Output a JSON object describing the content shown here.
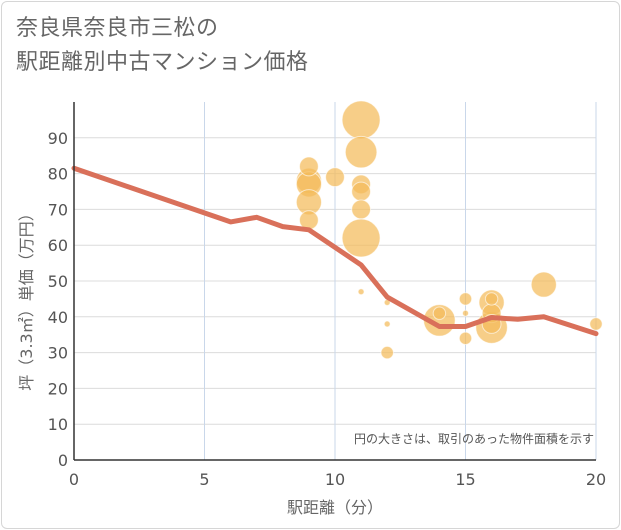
{
  "chart_data": {
    "type": "scatter",
    "title_line1": "奈良県奈良市三松の",
    "title_line2": "駅距離別中古マンション価格",
    "xlabel": "駅距離（分）",
    "ylabel": "坪（3.3㎡）単価（万円）",
    "note": "円の大きさは、取引のあった物件面積を示す",
    "xlim": [
      0,
      20
    ],
    "ylim": [
      0,
      100
    ],
    "xticks": [
      0,
      5,
      10,
      15,
      20
    ],
    "yticks": [
      0,
      10,
      20,
      30,
      40,
      50,
      60,
      70,
      80,
      90
    ],
    "bubble_color": "#f4bb5a",
    "line_color": "#d9705a",
    "points": [
      {
        "x": 9,
        "y": 82,
        "size": 3
      },
      {
        "x": 9,
        "y": 78,
        "size": 4
      },
      {
        "x": 9,
        "y": 77,
        "size": 4
      },
      {
        "x": 9,
        "y": 72,
        "size": 4
      },
      {
        "x": 9,
        "y": 67,
        "size": 3
      },
      {
        "x": 10,
        "y": 79,
        "size": 3
      },
      {
        "x": 11,
        "y": 95,
        "size": 6
      },
      {
        "x": 11,
        "y": 86,
        "size": 5
      },
      {
        "x": 11,
        "y": 77,
        "size": 3
      },
      {
        "x": 11,
        "y": 75,
        "size": 3
      },
      {
        "x": 11,
        "y": 70,
        "size": 3
      },
      {
        "x": 11,
        "y": 62,
        "size": 6
      },
      {
        "x": 11,
        "y": 47,
        "size": 1
      },
      {
        "x": 12,
        "y": 44,
        "size": 1
      },
      {
        "x": 12,
        "y": 38,
        "size": 1
      },
      {
        "x": 12,
        "y": 30,
        "size": 2
      },
      {
        "x": 14,
        "y": 41,
        "size": 2
      },
      {
        "x": 14,
        "y": 39,
        "size": 5
      },
      {
        "x": 15,
        "y": 45,
        "size": 2
      },
      {
        "x": 15,
        "y": 41,
        "size": 1
      },
      {
        "x": 15,
        "y": 34,
        "size": 2
      },
      {
        "x": 16,
        "y": 45,
        "size": 2
      },
      {
        "x": 16,
        "y": 44,
        "size": 4
      },
      {
        "x": 16,
        "y": 41,
        "size": 3
      },
      {
        "x": 16,
        "y": 38,
        "size": 3
      },
      {
        "x": 16,
        "y": 37,
        "size": 5
      },
      {
        "x": 18,
        "y": 49,
        "size": 4
      },
      {
        "x": 20,
        "y": 38,
        "size": 2
      }
    ],
    "trend": [
      {
        "x": 0,
        "y": 81.5
      },
      {
        "x": 6,
        "y": 66.5
      },
      {
        "x": 7,
        "y": 67.8
      },
      {
        "x": 8,
        "y": 65.2
      },
      {
        "x": 9,
        "y": 64.3
      },
      {
        "x": 11,
        "y": 54.5
      },
      {
        "x": 12,
        "y": 45.5
      },
      {
        "x": 14,
        "y": 37.3
      },
      {
        "x": 15,
        "y": 37.3
      },
      {
        "x": 16,
        "y": 39.8
      },
      {
        "x": 17,
        "y": 39.3
      },
      {
        "x": 18,
        "y": 40.0
      },
      {
        "x": 20,
        "y": 35.3
      }
    ]
  }
}
